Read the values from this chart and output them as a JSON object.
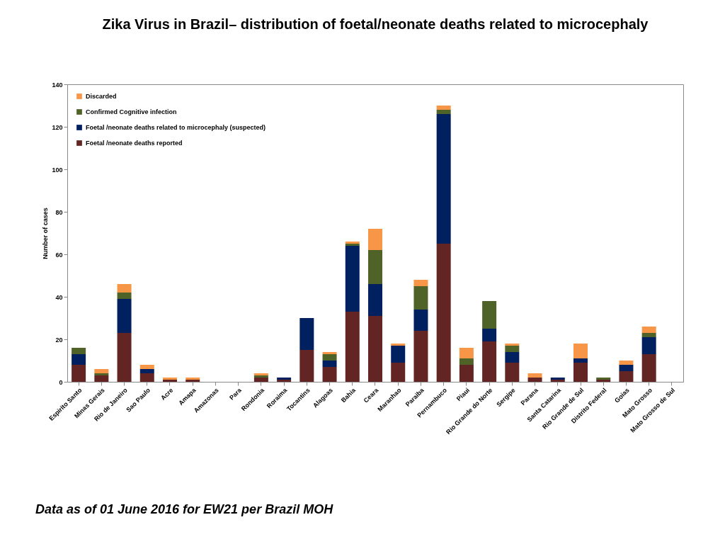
{
  "chart_data": {
    "type": "bar",
    "stacked": true,
    "title": "Zika Virus in Brazil– distribution of foetal/neonate deaths related to microcephaly",
    "ylabel": "Number of cases",
    "categories": [
      "Espirito Santo",
      "Minas Gerais",
      "Rio de Janeiro",
      "Sao Paulo",
      "Acre",
      "Amapa",
      "Amazonas",
      "Para",
      "Rondonia",
      "Roraima",
      "Tocantins",
      "Alagoas",
      "Bahia",
      "Ceara",
      "Maranhao",
      "Paraiba",
      "Pernambuco",
      "Piaui",
      "Rio Grande do Norte",
      "Sergipe",
      "Parana",
      "Santa Catarina",
      "Rio Grande de Sul",
      "Distrito Federal",
      "Goias",
      "Mato Grosso",
      "Mato Grosso de Sul"
    ],
    "series": [
      {
        "name": "Foetal /neonate deaths reported",
        "color": "#632523",
        "values": [
          8,
          3,
          23,
          4,
          1,
          1,
          0,
          0,
          2,
          1,
          15,
          7,
          33,
          31,
          9,
          24,
          65,
          8,
          19,
          9,
          2,
          1,
          9,
          1,
          5,
          13,
          0
        ]
      },
      {
        "name": "Foetal /neonate deaths related to microcephaly (suspected)",
        "color": "#002060",
        "values": [
          5,
          0,
          16,
          2,
          0,
          0,
          0,
          0,
          0,
          1,
          15,
          3,
          31,
          15,
          8,
          10,
          61,
          0,
          6,
          5,
          0,
          1,
          2,
          0,
          3,
          8,
          0
        ]
      },
      {
        "name": "Confirmed Cognitive infection",
        "color": "#4f6228",
        "values": [
          3,
          1,
          3,
          0,
          0,
          0,
          0,
          0,
          1,
          0,
          0,
          3,
          1,
          16,
          0,
          11,
          2,
          3,
          13,
          3,
          0,
          0,
          0,
          1,
          0,
          2,
          0
        ]
      },
      {
        "name": "Discarded",
        "color": "#f79646",
        "values": [
          0,
          2,
          4,
          2,
          1,
          1,
          0,
          0,
          1,
          0,
          0,
          1,
          1,
          10,
          1,
          3,
          2,
          5,
          0,
          1,
          2,
          0,
          7,
          0,
          2,
          3,
          0
        ]
      }
    ],
    "ylim": [
      0,
      140
    ],
    "yticks": [
      0,
      20,
      40,
      60,
      80,
      100,
      120,
      140
    ],
    "grid": false,
    "legend": "top left",
    "annotations": [
      "Data as of  01 June 2016 for EW21 per Brazil MOH"
    ]
  }
}
